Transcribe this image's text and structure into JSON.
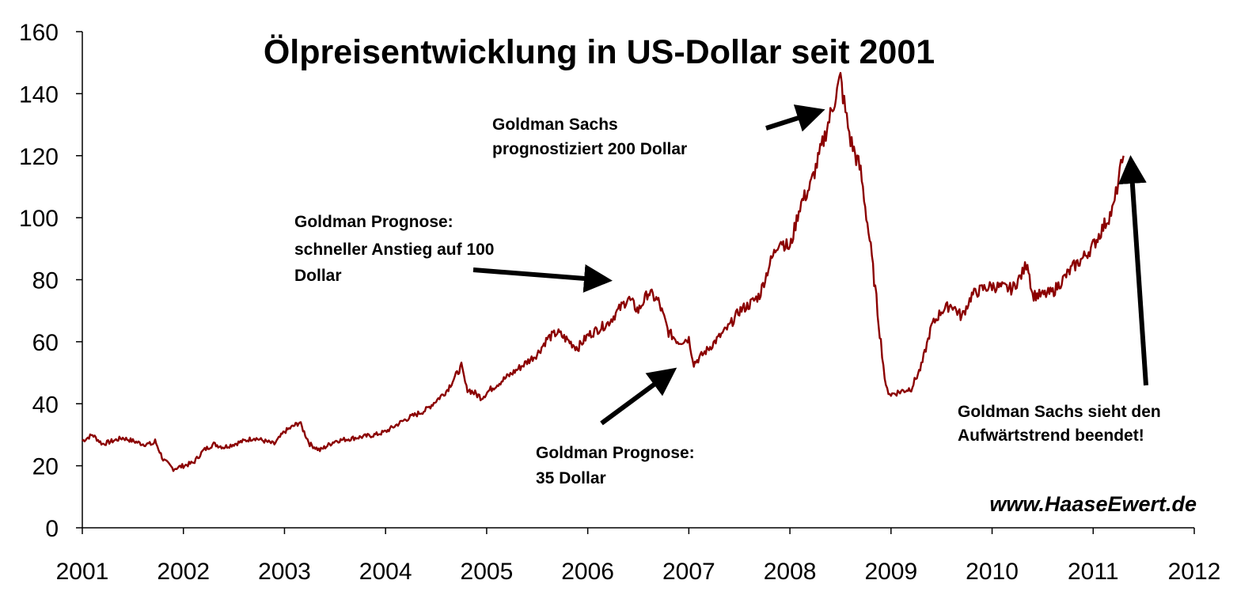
{
  "chart_data": {
    "type": "line",
    "title": "Ölpreisentwicklung in US-Dollar seit 2001",
    "xlabel": "",
    "ylabel": "",
    "xlim": [
      2001,
      2012
    ],
    "ylim": [
      0,
      160
    ],
    "x_ticks": [
      "2001",
      "2002",
      "2003",
      "2004",
      "2005",
      "2006",
      "2007",
      "2008",
      "2009",
      "2010",
      "2011",
      "2012"
    ],
    "y_ticks": [
      "0",
      "20",
      "40",
      "60",
      "80",
      "100",
      "120",
      "140",
      "160"
    ],
    "grid": false,
    "legend": "none",
    "series": [
      {
        "color": "#8b0000",
        "x": [
          2001.0,
          2001.1,
          2001.2,
          2001.3,
          2001.4,
          2001.5,
          2001.6,
          2001.7,
          2001.72,
          2001.8,
          2001.9,
          2002.0,
          2002.1,
          2002.2,
          2002.3,
          2002.4,
          2002.5,
          2002.6,
          2002.7,
          2002.8,
          2002.9,
          2003.0,
          2003.1,
          2003.15,
          2003.25,
          2003.35,
          2003.5,
          2003.7,
          2003.9,
          2004.0,
          2004.2,
          2004.4,
          2004.6,
          2004.75,
          2004.8,
          2004.95,
          2005.05,
          2005.3,
          2005.5,
          2005.6,
          2005.7,
          2005.9,
          2006.0,
          2006.2,
          2006.3,
          2006.4,
          2006.5,
          2006.6,
          2006.7,
          2006.8,
          2006.9,
          2007.0,
          2007.05,
          2007.2,
          2007.4,
          2007.5,
          2007.6,
          2007.7,
          2007.8,
          2007.9,
          2008.0,
          2008.1,
          2008.2,
          2008.3,
          2008.4,
          2008.5,
          2008.55,
          2008.6,
          2008.7,
          2008.8,
          2008.9,
          2008.95,
          2009.0,
          2009.1,
          2009.2,
          2009.3,
          2009.4,
          2009.5,
          2009.6,
          2009.7,
          2009.8,
          2009.9,
          2010.0,
          2010.2,
          2010.3,
          2010.35,
          2010.4,
          2010.5,
          2010.6,
          2010.7,
          2010.8,
          2010.9,
          2011.0,
          2011.1,
          2011.2,
          2011.25,
          2011.3
        ],
        "y": [
          28,
          30,
          27,
          28,
          29,
          28,
          27,
          27,
          28,
          22,
          19,
          20,
          21,
          25,
          27,
          26,
          27,
          28,
          29,
          28,
          27,
          31,
          33,
          34,
          27,
          25,
          28,
          29,
          30,
          31,
          35,
          38,
          44,
          52,
          45,
          42,
          45,
          51,
          56,
          61,
          63,
          58,
          62,
          66,
          70,
          74,
          70,
          76,
          73,
          63,
          60,
          61,
          53,
          58,
          65,
          70,
          72,
          75,
          85,
          93,
          90,
          104,
          110,
          121,
          133,
          145,
          134,
          125,
          115,
          90,
          60,
          45,
          43,
          44,
          45,
          52,
          65,
          70,
          72,
          68,
          75,
          77,
          78,
          77,
          82,
          86,
          75,
          75,
          76,
          80,
          84,
          87,
          91,
          97,
          103,
          112,
          120
        ]
      }
    ],
    "annotations": [
      {
        "lines": [
          "Goldman Sachs",
          "prognostiziert 200 Dollar"
        ]
      },
      {
        "lines": [
          "Goldman Prognose:",
          "schneller Anstieg auf 100",
          "Dollar"
        ]
      },
      {
        "lines": [
          "Goldman Prognose:",
          "35 Dollar"
        ]
      },
      {
        "lines": [
          "Goldman Sachs sieht den",
          "Aufwärtstrend beendet!"
        ]
      }
    ],
    "watermark": "www.HaaseEwert.de"
  }
}
